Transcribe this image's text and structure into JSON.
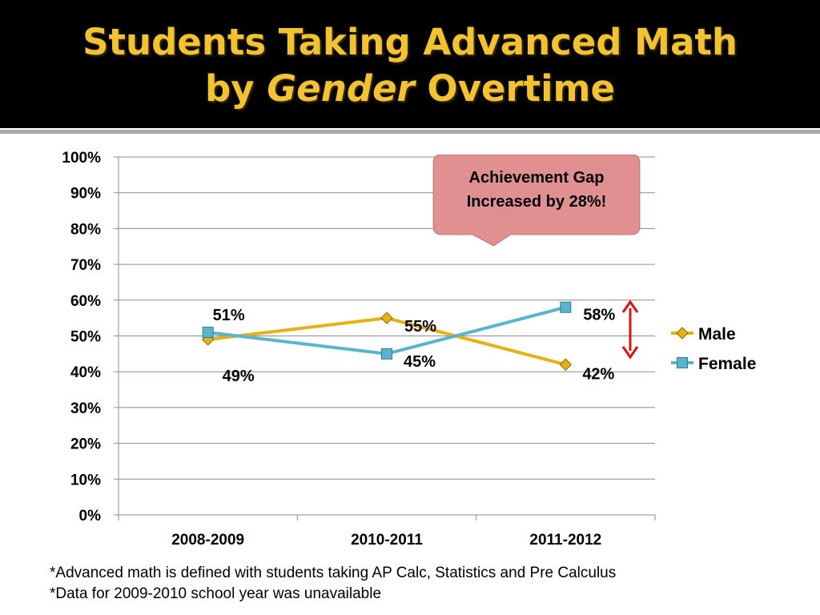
{
  "slide": {
    "title_part1": "Students Taking Advanced Math",
    "title_part2": "by ",
    "title_italic": "Gender",
    "title_part3": " Overtime"
  },
  "callout": {
    "text": "Achievement Gap\nIncreased  by 28%!",
    "color": "#e09090"
  },
  "footnotes": [
    "*Advanced math is defined with students taking AP Calc, Statistics and Pre Calculus",
    "*Data for 2009-2010 school year was unavailable"
  ],
  "chart_data": {
    "type": "line",
    "categories": [
      "2008-2009",
      "2010-2011",
      "2011-2012"
    ],
    "series": [
      {
        "name": "Male",
        "values": [
          49,
          55,
          42
        ],
        "labels": [
          "49%",
          "55%",
          "42%"
        ],
        "color": "#e8b010",
        "marker": "diamond"
      },
      {
        "name": "Female",
        "values": [
          51,
          45,
          58
        ],
        "labels": [
          "51%",
          "45%",
          "58%"
        ],
        "color": "#5ab4cc",
        "marker": "square"
      }
    ],
    "ylim": [
      0,
      100
    ],
    "yticks": [
      "0%",
      "10%",
      "20%",
      "30%",
      "40%",
      "50%",
      "60%",
      "70%",
      "80%",
      "90%",
      "100%"
    ],
    "grid": true,
    "legend": "right",
    "arrow_color": "#e01010"
  }
}
